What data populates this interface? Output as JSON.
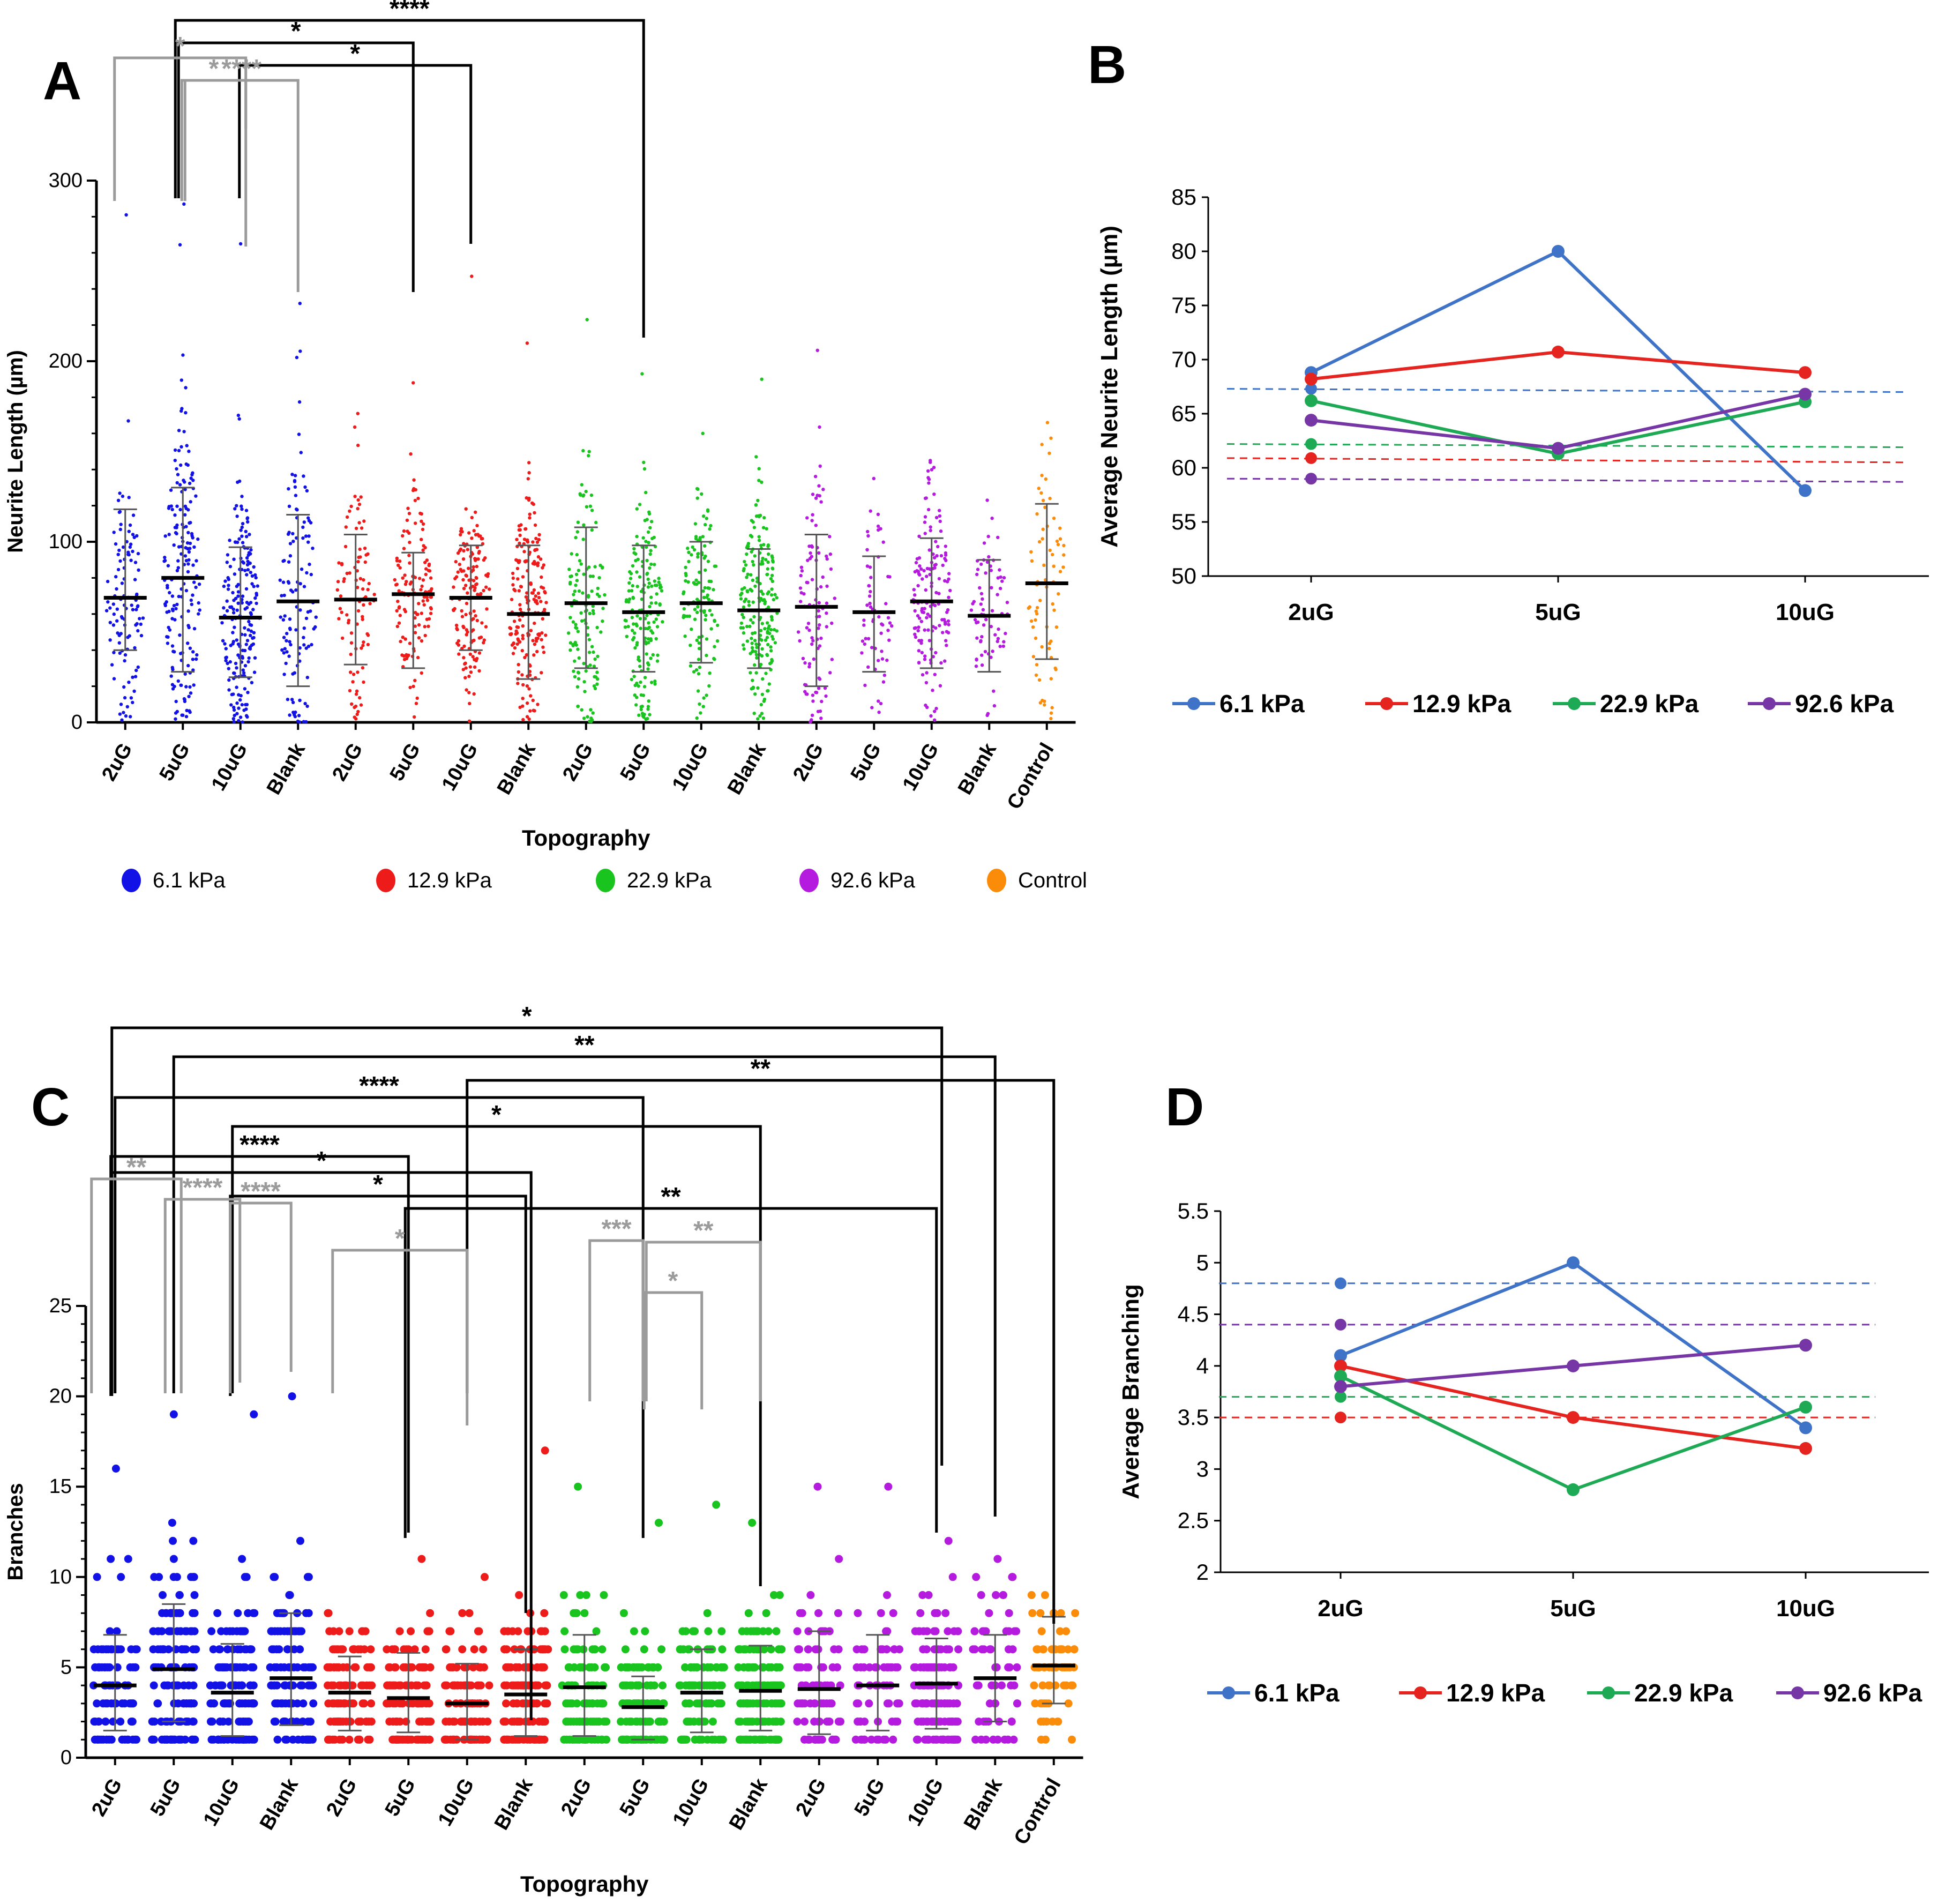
{
  "colors": {
    "blue_dot": "#1212e6",
    "red_dot": "#ee1b1b",
    "green_dot": "#19c41e",
    "purple_dot": "#b51adf",
    "orange_dot": "#fb8c0a",
    "line_blue": "#3f73c7",
    "line_red": "#e5231f",
    "line_green": "#1eaa55",
    "line_purple": "#7636a6",
    "sig_black": "#000000",
    "sig_gray": "#9b9b9b"
  },
  "chart_data": [
    {
      "panel": "A",
      "type": "scatter",
      "title": "",
      "xlabel": "Topography",
      "ylabel": "Neurite Length (µm)",
      "ylim": [
        0,
        300
      ],
      "yticks": [
        "0",
        "100",
        "200",
        "300"
      ],
      "categories": [
        "2uG",
        "5uG",
        "10uG",
        "Blank",
        "2uG",
        "5uG",
        "10uG",
        "Blank",
        "2uG",
        "5uG",
        "10uG",
        "Blank",
        "2uG",
        "5uG",
        "10uG",
        "Blank",
        "Control"
      ],
      "series_of_category": [
        0,
        0,
        0,
        0,
        1,
        1,
        1,
        1,
        2,
        2,
        2,
        2,
        3,
        3,
        3,
        3,
        4
      ],
      "means": [
        69,
        80,
        58,
        67,
        68,
        71,
        69,
        60,
        66,
        61,
        66,
        62,
        64,
        61,
        67,
        59,
        77
      ],
      "sd_low": [
        40,
        28,
        25,
        20,
        32,
        30,
        40,
        24,
        30,
        28,
        33,
        30,
        20,
        28,
        30,
        28,
        35
      ],
      "sd_high": [
        118,
        130,
        97,
        115,
        104,
        94,
        98,
        98,
        108,
        98,
        100,
        96,
        104,
        92,
        102,
        90,
        121
      ],
      "max": [
        281,
        287,
        265,
        232,
        171,
        188,
        247,
        210,
        223,
        193,
        160,
        190,
        206,
        135,
        145,
        123,
        166
      ],
      "counts": [
        110,
        180,
        200,
        115,
        90,
        130,
        150,
        190,
        130,
        170,
        120,
        200,
        100,
        60,
        150,
        70,
        70
      ],
      "legend": [
        "6.1 kPa",
        "12.9 kPa",
        "22.9 kPa",
        "92.6 kPa",
        "Control"
      ],
      "significance": [
        {
          "from": 1,
          "to": 9,
          "label": "****",
          "color": "black"
        },
        {
          "from": 1,
          "to": 5,
          "label": "*",
          "color": "black"
        },
        {
          "from": 2,
          "to": 6,
          "label": "*",
          "color": "black"
        },
        {
          "from": 0,
          "to": 2,
          "label": "*",
          "color": "gray"
        },
        {
          "from": 1,
          "to": 2,
          "label": "*",
          "color": "gray"
        },
        {
          "from": 1,
          "to": 3,
          "label": "****",
          "color": "gray"
        }
      ]
    },
    {
      "panel": "B",
      "type": "line",
      "title": "",
      "xlabel": "",
      "ylabel": "Average Neurite Length (µm)",
      "categories": [
        "2uG",
        "5uG",
        "10uG"
      ],
      "ylim": [
        50,
        85
      ],
      "yticks": [
        "50",
        "55",
        "60",
        "65",
        "70",
        "75",
        "80",
        "85"
      ],
      "series": [
        {
          "name": "6.1 kPa",
          "values": [
            68.8,
            80.0,
            57.9
          ],
          "baseline": [
            67.3,
            67.0
          ]
        },
        {
          "name": "12.9 kPa",
          "values": [
            68.2,
            70.7,
            68.8
          ],
          "baseline": [
            60.9,
            60.5
          ]
        },
        {
          "name": "22.9 kPa",
          "values": [
            66.2,
            61.3,
            66.1
          ],
          "baseline": [
            62.2,
            61.9
          ]
        },
        {
          "name": "92.6 kPa",
          "values": [
            64.4,
            61.8,
            66.8
          ],
          "baseline": [
            59.0,
            58.7
          ]
        }
      ]
    },
    {
      "panel": "C",
      "type": "scatter",
      "title": "",
      "xlabel": "Topography",
      "ylabel": "Branches",
      "ylim": [
        0,
        25
      ],
      "yticks": [
        "0",
        "5",
        "10",
        "15",
        "20",
        "25"
      ],
      "categories": [
        "2uG",
        "5uG",
        "10uG",
        "Blank",
        "2uG",
        "5uG",
        "10uG",
        "Blank",
        "2uG",
        "5uG",
        "10uG",
        "Blank",
        "2uG",
        "5uG",
        "10uG",
        "Blank",
        "Control"
      ],
      "series_of_category": [
        0,
        0,
        0,
        0,
        1,
        1,
        1,
        1,
        2,
        2,
        2,
        2,
        3,
        3,
        3,
        3,
        4
      ],
      "means": [
        4.0,
        4.9,
        3.6,
        4.4,
        3.6,
        3.3,
        3.0,
        3.5,
        3.9,
        2.8,
        3.6,
        3.7,
        3.8,
        4.0,
        4.1,
        4.4,
        5.1
      ],
      "sd_low": [
        1.5,
        2.0,
        1.2,
        1.8,
        1.5,
        1.4,
        1.0,
        1.2,
        1.2,
        1.0,
        1.4,
        1.5,
        1.3,
        1.5,
        1.6,
        2.0,
        3.0
      ],
      "sd_high": [
        6.8,
        8.5,
        6.3,
        8.0,
        5.6,
        5.8,
        5.2,
        6.0,
        6.8,
        4.5,
        6.0,
        6.2,
        7.0,
        6.8,
        6.6,
        6.8,
        7.8
      ],
      "max": [
        16,
        19,
        19,
        20,
        8,
        11,
        10,
        17,
        15,
        13,
        14,
        13,
        15,
        15,
        12,
        11,
        9
      ],
      "counts": [
        90,
        150,
        140,
        120,
        110,
        120,
        110,
        140,
        110,
        130,
        100,
        160,
        80,
        70,
        130,
        60,
        70
      ],
      "significance": [
        {
          "from": 0,
          "to": 14,
          "label": "*",
          "color": "black"
        },
        {
          "from": 1,
          "to": 15,
          "label": "**",
          "color": "black"
        },
        {
          "from": 6,
          "to": 16,
          "label": "**",
          "color": "black"
        },
        {
          "from": 0,
          "to": 9,
          "label": "****",
          "color": "black"
        },
        {
          "from": 2,
          "to": 11,
          "label": "*",
          "color": "black"
        },
        {
          "from": 0,
          "to": 5,
          "label": "****",
          "color": "black"
        },
        {
          "from": 0,
          "to": 7,
          "label": "*",
          "color": "black"
        },
        {
          "from": 2,
          "to": 7,
          "label": "*",
          "color": "black"
        },
        {
          "from": 5,
          "to": 14,
          "label": "**",
          "color": "black"
        },
        {
          "from": 0,
          "to": 1,
          "label": "**",
          "color": "gray"
        },
        {
          "from": 1,
          "to": 2,
          "label": "****",
          "color": "gray"
        },
        {
          "from": 2,
          "to": 3,
          "label": "****",
          "color": "gray"
        },
        {
          "from": 4,
          "to": 6,
          "label": "*",
          "color": "gray"
        },
        {
          "from": 8,
          "to": 9,
          "label": "***",
          "color": "gray"
        },
        {
          "from": 9,
          "to": 11,
          "label": "**",
          "color": "gray"
        },
        {
          "from": 9,
          "to": 10,
          "label": "*",
          "color": "gray"
        }
      ]
    },
    {
      "panel": "D",
      "type": "line",
      "title": "",
      "xlabel": "",
      "ylabel": "Average Branching",
      "categories": [
        "2uG",
        "5uG",
        "10uG"
      ],
      "ylim": [
        2,
        5.5
      ],
      "yticks": [
        "2",
        "2.5",
        "3",
        "3.5",
        "4",
        "4.5",
        "5",
        "5.5"
      ],
      "series": [
        {
          "name": "6.1 kPa",
          "values": [
            4.1,
            5.0,
            3.4
          ],
          "baseline": [
            4.8,
            4.8
          ]
        },
        {
          "name": "12.9 kPa",
          "values": [
            4.0,
            3.5,
            3.2
          ],
          "baseline": [
            3.5,
            3.5
          ]
        },
        {
          "name": "22.9 kPa",
          "values": [
            3.9,
            2.8,
            3.6
          ],
          "baseline": [
            3.7,
            3.7
          ]
        },
        {
          "name": "92.6 kPa",
          "values": [
            3.8,
            4.0,
            4.2
          ],
          "baseline": [
            4.4,
            4.4
          ]
        }
      ]
    }
  ]
}
